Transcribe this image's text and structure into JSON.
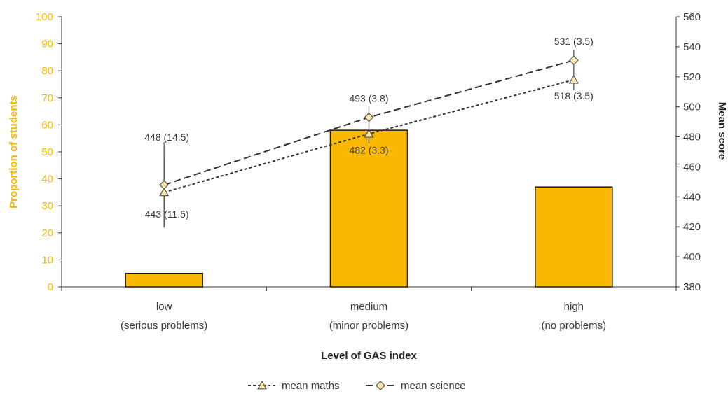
{
  "chart_data": {
    "type": "bar",
    "xlabel": "Level of GAS index",
    "ylabel_left": "Proportion of students",
    "ylabel_right": "Mean score",
    "ylim_left": [
      0,
      100
    ],
    "ylim_right": [
      380,
      560
    ],
    "yticks_left": [
      "0",
      "10",
      "20",
      "30",
      "40",
      "50",
      "60",
      "70",
      "80",
      "90",
      "100"
    ],
    "yticks_right": [
      "380",
      "400",
      "420",
      "440",
      "460",
      "480",
      "500",
      "520",
      "540",
      "560"
    ],
    "categories": [
      {
        "line1": "low",
        "line2": "(serious problems)"
      },
      {
        "line1": "medium",
        "line2": "(minor problems)"
      },
      {
        "line1": "high",
        "line2": "(no problems)"
      }
    ],
    "bars": {
      "axis": "left",
      "values": [
        5,
        58,
        37
      ],
      "color": "#fbb800"
    },
    "series": [
      {
        "name": "mean maths",
        "axis": "right",
        "marker": "triangle",
        "values": [
          443,
          482,
          518
        ],
        "se": [
          11.5,
          3.3,
          3.5
        ],
        "labels": [
          "443 (11.5)",
          "482 (3.3)",
          "518 (3.5)"
        ]
      },
      {
        "name": "mean science",
        "axis": "right",
        "marker": "diamond",
        "values": [
          448,
          493,
          531
        ],
        "se": [
          14.5,
          3.8,
          3.5
        ],
        "labels": [
          "448 (14.5)",
          "493 (3.8)",
          "531 (3.5)"
        ]
      }
    ],
    "grid": false,
    "legend_position": "bottom-center"
  }
}
